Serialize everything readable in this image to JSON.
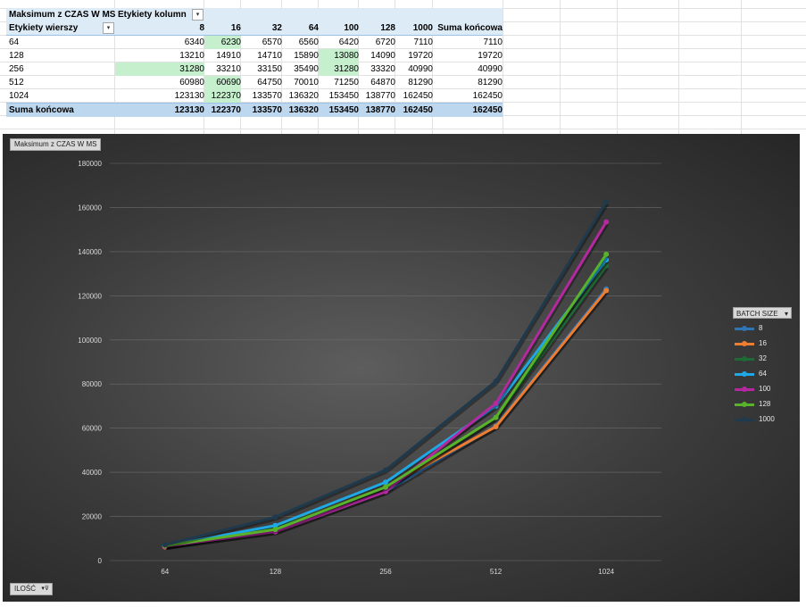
{
  "pivot": {
    "title": "Maksimum z CZAS W MS",
    "col_labels_caption": "Etykiety kolumn",
    "row_labels_caption": "Etykiety wierszy",
    "columns": [
      "8",
      "16",
      "32",
      "64",
      "100",
      "128",
      "1000",
      "Suma końcowa"
    ],
    "rows": [
      {
        "label": "64",
        "values": [
          "6340",
          "6230",
          "6570",
          "6560",
          "6420",
          "6720",
          "7110",
          "7110"
        ]
      },
      {
        "label": "128",
        "values": [
          "13210",
          "14910",
          "14710",
          "15890",
          "13080",
          "14090",
          "19720",
          "19720"
        ]
      },
      {
        "label": "256",
        "values": [
          "31280",
          "33210",
          "33150",
          "35490",
          "31280",
          "33320",
          "40990",
          "40990"
        ]
      },
      {
        "label": "512",
        "values": [
          "60980",
          "60690",
          "64750",
          "70010",
          "71250",
          "64870",
          "81290",
          "81290"
        ]
      },
      {
        "label": "1024",
        "values": [
          "123130",
          "122370",
          "133570",
          "136320",
          "153450",
          "138770",
          "162450",
          "162450"
        ]
      }
    ],
    "total": {
      "label": "Suma końcowa",
      "values": [
        "123130",
        "122370",
        "133570",
        "136320",
        "153450",
        "138770",
        "162450",
        "162450"
      ]
    },
    "highlight_color": "#c6efce"
  },
  "chart_buttons": {
    "value_field": "Maksimum z CZAS W MS",
    "axis_field": "ILOŚĆ",
    "legend_field": "BATCH SIZE"
  },
  "chart_data": {
    "type": "line",
    "categories": [
      "64",
      "128",
      "256",
      "512",
      "1024"
    ],
    "ylim": [
      0,
      180000
    ],
    "yticks": [
      "0",
      "20000",
      "40000",
      "60000",
      "80000",
      "100000",
      "120000",
      "140000",
      "160000",
      "180000"
    ],
    "grid": true,
    "legend_position": "right",
    "series": [
      {
        "name": "8",
        "color": "#2e75b6",
        "values": [
          6340,
          13210,
          31280,
          60980,
          123130
        ]
      },
      {
        "name": "16",
        "color": "#ed7d31",
        "values": [
          6230,
          14910,
          33210,
          60690,
          122370
        ]
      },
      {
        "name": "32",
        "color": "#1e6b35",
        "values": [
          6570,
          14710,
          33150,
          64750,
          133570
        ]
      },
      {
        "name": "64",
        "color": "#1fa8e6",
        "values": [
          6560,
          15890,
          35490,
          70010,
          136320
        ]
      },
      {
        "name": "100",
        "color": "#b4299f",
        "values": [
          6420,
          13080,
          31280,
          71250,
          153450
        ]
      },
      {
        "name": "128",
        "color": "#58b22a",
        "values": [
          6720,
          14090,
          33320,
          64870,
          138770
        ]
      },
      {
        "name": "1000",
        "color": "#1f3a4d",
        "values": [
          7110,
          19720,
          40990,
          81290,
          162450
        ]
      }
    ]
  }
}
